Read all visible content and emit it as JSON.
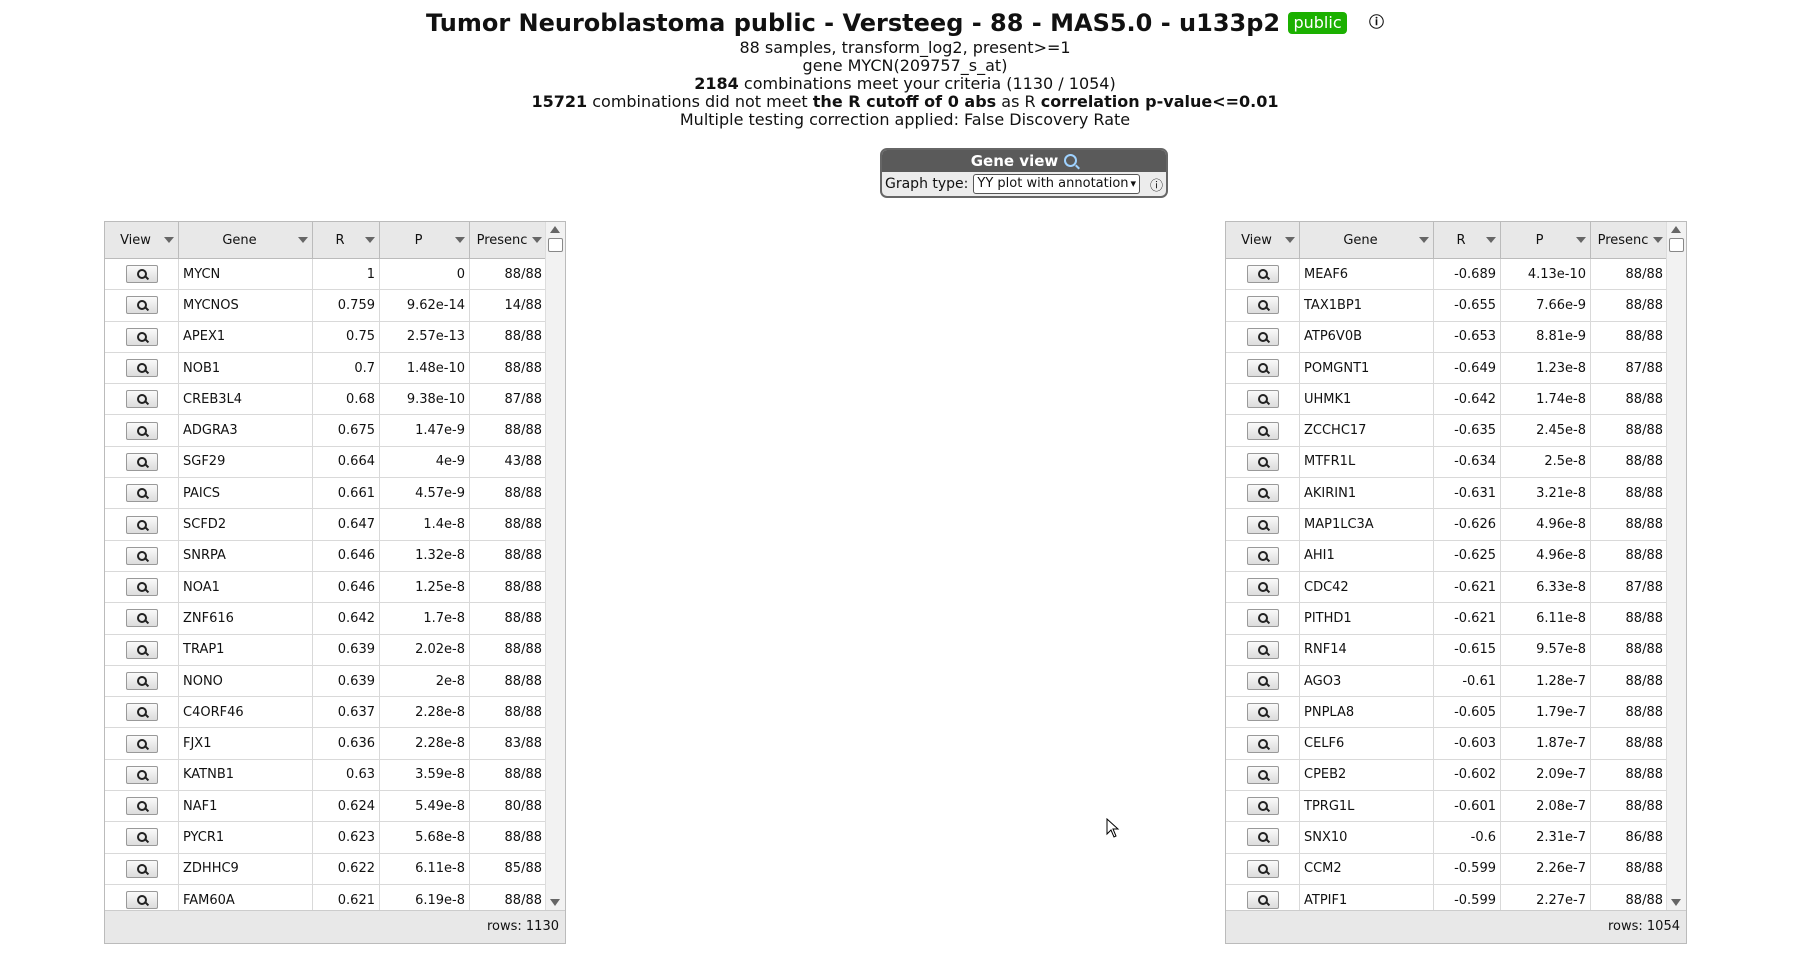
{
  "header": {
    "title": "Tumor Neuroblastoma public - Versteeg - 88 - MAS5.0 - u133p2",
    "badge": "public",
    "info_glyph": "ⓘ",
    "line1": "88 samples, transform_log2, present>=1",
    "line2": "gene MYCN(209757_s_at)",
    "line3_bold": "2184",
    "line3_rest": " combinations meet your criteria (1130 / 1054)",
    "line4_bold1": "15721",
    "line4_text1": " combinations did not meet ",
    "line4_bold2": "the R cutoff of 0 abs",
    "line4_text2": " as R ",
    "line4_bold3": "correlation p-value<=0.01",
    "line5": "Multiple testing correction applied: False Discovery Rate"
  },
  "gene_view": {
    "title": "Gene view",
    "graph_type_label": "Graph type:",
    "graph_type_value": "YY plot with annotation",
    "info_glyph": "ⓘ"
  },
  "columns": [
    "View",
    "Gene",
    "R",
    "P",
    "Presenc"
  ],
  "left_table": {
    "rows_label": "rows: 1130",
    "rows": [
      {
        "gene": "MYCN",
        "r": "1",
        "p": "0",
        "presence": "88/88"
      },
      {
        "gene": "MYCNOS",
        "r": "0.759",
        "p": "9.62e-14",
        "presence": "14/88"
      },
      {
        "gene": "APEX1",
        "r": "0.75",
        "p": "2.57e-13",
        "presence": "88/88"
      },
      {
        "gene": "NOB1",
        "r": "0.7",
        "p": "1.48e-10",
        "presence": "88/88"
      },
      {
        "gene": "CREB3L4",
        "r": "0.68",
        "p": "9.38e-10",
        "presence": "87/88"
      },
      {
        "gene": "ADGRA3",
        "r": "0.675",
        "p": "1.47e-9",
        "presence": "88/88"
      },
      {
        "gene": "SGF29",
        "r": "0.664",
        "p": "4e-9",
        "presence": "43/88"
      },
      {
        "gene": "PAICS",
        "r": "0.661",
        "p": "4.57e-9",
        "presence": "88/88"
      },
      {
        "gene": "SCFD2",
        "r": "0.647",
        "p": "1.4e-8",
        "presence": "88/88"
      },
      {
        "gene": "SNRPA",
        "r": "0.646",
        "p": "1.32e-8",
        "presence": "88/88"
      },
      {
        "gene": "NOA1",
        "r": "0.646",
        "p": "1.25e-8",
        "presence": "88/88"
      },
      {
        "gene": "ZNF616",
        "r": "0.642",
        "p": "1.7e-8",
        "presence": "88/88"
      },
      {
        "gene": "TRAP1",
        "r": "0.639",
        "p": "2.02e-8",
        "presence": "88/88"
      },
      {
        "gene": "NONO",
        "r": "0.639",
        "p": "2e-8",
        "presence": "88/88"
      },
      {
        "gene": "C4ORF46",
        "r": "0.637",
        "p": "2.28e-8",
        "presence": "88/88"
      },
      {
        "gene": "FJX1",
        "r": "0.636",
        "p": "2.28e-8",
        "presence": "83/88"
      },
      {
        "gene": "KATNB1",
        "r": "0.63",
        "p": "3.59e-8",
        "presence": "88/88"
      },
      {
        "gene": "NAF1",
        "r": "0.624",
        "p": "5.49e-8",
        "presence": "80/88"
      },
      {
        "gene": "PYCR1",
        "r": "0.623",
        "p": "5.68e-8",
        "presence": "88/88"
      },
      {
        "gene": "ZDHHC9",
        "r": "0.622",
        "p": "6.11e-8",
        "presence": "85/88"
      },
      {
        "gene": "FAM60A",
        "r": "0.621",
        "p": "6.19e-8",
        "presence": "88/88"
      }
    ]
  },
  "right_table": {
    "rows_label": "rows: 1054",
    "rows": [
      {
        "gene": "MEAF6",
        "r": "-0.689",
        "p": "4.13e-10",
        "presence": "88/88"
      },
      {
        "gene": "TAX1BP1",
        "r": "-0.655",
        "p": "7.66e-9",
        "presence": "88/88"
      },
      {
        "gene": "ATP6V0B",
        "r": "-0.653",
        "p": "8.81e-9",
        "presence": "88/88"
      },
      {
        "gene": "POMGNT1",
        "r": "-0.649",
        "p": "1.23e-8",
        "presence": "87/88"
      },
      {
        "gene": "UHMK1",
        "r": "-0.642",
        "p": "1.74e-8",
        "presence": "88/88"
      },
      {
        "gene": "ZCCHC17",
        "r": "-0.635",
        "p": "2.45e-8",
        "presence": "88/88"
      },
      {
        "gene": "MTFR1L",
        "r": "-0.634",
        "p": "2.5e-8",
        "presence": "88/88"
      },
      {
        "gene": "AKIRIN1",
        "r": "-0.631",
        "p": "3.21e-8",
        "presence": "88/88"
      },
      {
        "gene": "MAP1LC3A",
        "r": "-0.626",
        "p": "4.96e-8",
        "presence": "88/88"
      },
      {
        "gene": "AHI1",
        "r": "-0.625",
        "p": "4.96e-8",
        "presence": "88/88"
      },
      {
        "gene": "CDC42",
        "r": "-0.621",
        "p": "6.33e-8",
        "presence": "87/88"
      },
      {
        "gene": "PITHD1",
        "r": "-0.621",
        "p": "6.11e-8",
        "presence": "88/88"
      },
      {
        "gene": "RNF14",
        "r": "-0.615",
        "p": "9.57e-8",
        "presence": "88/88"
      },
      {
        "gene": "AGO3",
        "r": "-0.61",
        "p": "1.28e-7",
        "presence": "88/88"
      },
      {
        "gene": "PNPLA8",
        "r": "-0.605",
        "p": "1.79e-7",
        "presence": "88/88"
      },
      {
        "gene": "CELF6",
        "r": "-0.603",
        "p": "1.87e-7",
        "presence": "88/88"
      },
      {
        "gene": "CPEB2",
        "r": "-0.602",
        "p": "2.09e-7",
        "presence": "88/88"
      },
      {
        "gene": "TPRG1L",
        "r": "-0.601",
        "p": "2.08e-7",
        "presence": "88/88"
      },
      {
        "gene": "SNX10",
        "r": "-0.6",
        "p": "2.31e-7",
        "presence": "86/88"
      },
      {
        "gene": "CCM2",
        "r": "-0.599",
        "p": "2.26e-7",
        "presence": "88/88"
      },
      {
        "gene": "ATPIF1",
        "r": "-0.599",
        "p": "2.27e-7",
        "presence": "88/88"
      }
    ]
  },
  "colors": {
    "badge": "#1bb000",
    "gene_view_header": "#5a5a5a",
    "grid_header": "#e8e8e8"
  }
}
